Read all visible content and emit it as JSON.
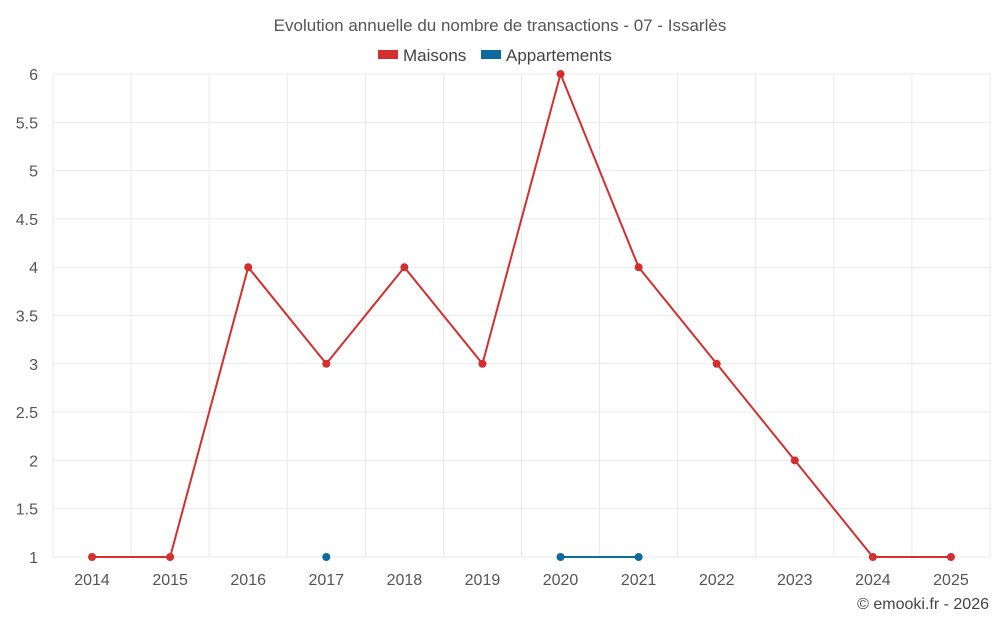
{
  "chart_data": {
    "type": "line",
    "title": "Evolution annuelle du nombre de transactions - 07 - Issarlès",
    "x": [
      "2014",
      "2015",
      "2016",
      "2017",
      "2018",
      "2019",
      "2020",
      "2021",
      "2022",
      "2023",
      "2024",
      "2025"
    ],
    "yticks": [
      "1",
      "1.5",
      "2",
      "2.5",
      "3",
      "3.5",
      "4",
      "4.5",
      "5",
      "5.5",
      "6"
    ],
    "ylim": [
      1,
      6
    ],
    "grid": true,
    "legend_position": "top-center",
    "series": [
      {
        "name": "Maisons",
        "color": "#d32f2f",
        "values": [
          1,
          1,
          4,
          3,
          4,
          3,
          6,
          4,
          3,
          2,
          1,
          1
        ]
      },
      {
        "name": "Appartements",
        "color": "#0d6aa0",
        "values": [
          null,
          null,
          null,
          1,
          null,
          null,
          1,
          1,
          null,
          null,
          null,
          null
        ]
      }
    ],
    "credit": "© emooki.fr - 2026"
  }
}
